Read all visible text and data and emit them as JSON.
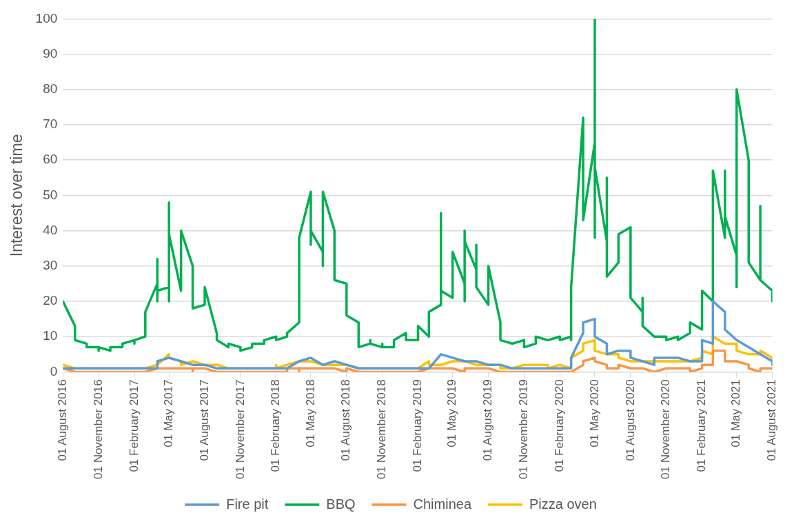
{
  "chart_data": {
    "type": "line",
    "ylabel": "Interest over time",
    "xlim": [
      "2016-08",
      "2021-08"
    ],
    "xticks": [
      {
        "value": "2016-08",
        "label": "01 August 2016"
      },
      {
        "value": "2016-11",
        "label": "01 November 2016"
      },
      {
        "value": "2017-02",
        "label": "01 February 2017"
      },
      {
        "value": "2017-05",
        "label": "01 May 2017"
      },
      {
        "value": "2017-08",
        "label": "01 August 2017"
      },
      {
        "value": "2017-11",
        "label": "01 November 2017"
      },
      {
        "value": "2018-02",
        "label": "01 February 2018"
      },
      {
        "value": "2018-05",
        "label": "01 May 2018"
      },
      {
        "value": "2018-08",
        "label": "01 August 2018"
      },
      {
        "value": "2018-11",
        "label": "01 November 2018"
      },
      {
        "value": "2019-02",
        "label": "01 February 2019"
      },
      {
        "value": "2019-05",
        "label": "01 May 2019"
      },
      {
        "value": "2019-08",
        "label": "01 August 2019"
      },
      {
        "value": "2019-11",
        "label": "01 November 2019"
      },
      {
        "value": "2020-02",
        "label": "01 February 2020"
      },
      {
        "value": "2020-05",
        "label": "01 May 2020"
      },
      {
        "value": "2020-08",
        "label": "01 August 2020"
      },
      {
        "value": "2020-11",
        "label": "01 November 2020"
      },
      {
        "value": "2021-02",
        "label": "01 February 2021"
      },
      {
        "value": "2021-05",
        "label": "01 May 2021"
      },
      {
        "value": "2021-08",
        "label": "01 August 2021"
      }
    ],
    "ylim": [
      0,
      100
    ],
    "yticks": [
      0,
      10,
      20,
      30,
      40,
      50,
      60,
      70,
      80,
      90,
      100
    ],
    "grid": "y",
    "legend": "bottom",
    "marker": "none",
    "line_style": "solid",
    "series": [
      {
        "name": "Fire pit",
        "color": "#5b9bd5",
        "x": [
          "2016-08",
          "2016-09",
          "2017-03",
          "2017-04",
          "2017-04",
          "2017-05",
          "2017-06",
          "2017-07",
          "2017-08",
          "2017-09",
          "2018-03",
          "2018-04",
          "2018-05",
          "2018-06",
          "2018-07",
          "2018-08",
          "2018-09",
          "2019-03",
          "2019-04",
          "2019-05",
          "2019-06",
          "2019-07",
          "2019-08",
          "2019-09",
          "2019-10",
          "2020-02",
          "2020-03",
          "2020-03",
          "2020-04",
          "2020-04",
          "2020-05",
          "2020-05",
          "2020-06",
          "2020-06",
          "2020-07",
          "2020-08",
          "2020-08",
          "2020-09",
          "2020-10",
          "2020-10",
          "2020-11",
          "2020-12",
          "2021-01",
          "2021-02",
          "2021-02",
          "2021-03",
          "2021-03",
          "2021-04",
          "2021-04",
          "2021-05",
          "2021-06",
          "2021-07",
          "2021-08",
          "2021-08"
        ],
        "values": [
          1,
          1,
          1,
          1,
          3,
          4,
          3,
          2,
          2,
          1,
          1,
          3,
          4,
          2,
          3,
          2,
          1,
          1,
          5,
          4,
          3,
          3,
          2,
          2,
          1,
          1,
          1,
          4,
          11,
          14,
          15,
          10,
          8,
          5,
          6,
          6,
          4,
          3,
          2,
          4,
          4,
          4,
          3,
          3,
          9,
          8,
          20,
          17,
          12,
          9,
          7,
          5,
          3,
          2
        ]
      },
      {
        "name": "BBQ",
        "color": "#00b050",
        "x": [
          "2016-08",
          "2016-09",
          "2016-09",
          "2016-10",
          "2016-10",
          "2016-11",
          "2016-11",
          "2016-11",
          "2016-12",
          "2016-12",
          "2017-01",
          "2017-01",
          "2017-02",
          "2017-02",
          "2017-02",
          "2017-03",
          "2017-03",
          "2017-04",
          "2017-04",
          "2017-04",
          "2017-04",
          "2017-05",
          "2017-05",
          "2017-05",
          "2017-05",
          "2017-06",
          "2017-06",
          "2017-07",
          "2017-07",
          "2017-08",
          "2017-08",
          "2017-09",
          "2017-09",
          "2017-10",
          "2017-10",
          "2017-11",
          "2017-11",
          "2017-12",
          "2017-12",
          "2018-01",
          "2018-01",
          "2018-02",
          "2018-02",
          "2018-03",
          "2018-03",
          "2018-04",
          "2018-04",
          "2018-05",
          "2018-05",
          "2018-05",
          "2018-06",
          "2018-06",
          "2018-06",
          "2018-07",
          "2018-07",
          "2018-08",
          "2018-08",
          "2018-09",
          "2018-09",
          "2018-10",
          "2018-10",
          "2018-10",
          "2018-11",
          "2018-11",
          "2018-11",
          "2018-12",
          "2018-12",
          "2019-01",
          "2019-01",
          "2019-02",
          "2019-02",
          "2019-03",
          "2019-03",
          "2019-04",
          "2019-04",
          "2019-04",
          "2019-05",
          "2019-05",
          "2019-06",
          "2019-06",
          "2019-06",
          "2019-06",
          "2019-07",
          "2019-07",
          "2019-07",
          "2019-08",
          "2019-08",
          "2019-09",
          "2019-09",
          "2019-10",
          "2019-11",
          "2019-11",
          "2019-12",
          "2019-12",
          "2020-01",
          "2020-02",
          "2020-02",
          "2020-03",
          "2020-03",
          "2020-03",
          "2020-04",
          "2020-04",
          "2020-05",
          "2020-05",
          "2020-05",
          "2020-05",
          "2020-06",
          "2020-06",
          "2020-06",
          "2020-07",
          "2020-07",
          "2020-08",
          "2020-08",
          "2020-09",
          "2020-09",
          "2020-09",
          "2020-10",
          "2020-11",
          "2020-11",
          "2020-12",
          "2020-12",
          "2021-01",
          "2021-01",
          "2021-02",
          "2021-02",
          "2021-03",
          "2021-03",
          "2021-04",
          "2021-04",
          "2021-04",
          "2021-05",
          "2021-05",
          "2021-05",
          "2021-06",
          "2021-06",
          "2021-07",
          "2021-07",
          "2021-07",
          "2021-08",
          "2021-08"
        ],
        "values": [
          20,
          13,
          9,
          8,
          7,
          7,
          6,
          7,
          6,
          7,
          7,
          8,
          9,
          8,
          9,
          10,
          17,
          25,
          32,
          20,
          23,
          24,
          48,
          20,
          39,
          23,
          40,
          30,
          18,
          19,
          24,
          11,
          9,
          7,
          8,
          7,
          6,
          7,
          8,
          8,
          9,
          10,
          9,
          10,
          11,
          14,
          38,
          51,
          36,
          40,
          34,
          30,
          51,
          40,
          26,
          25,
          16,
          14,
          7,
          8,
          9,
          8,
          7,
          8,
          7,
          7,
          9,
          11,
          9,
          9,
          13,
          10,
          17,
          19,
          45,
          23,
          21,
          34,
          25,
          40,
          20,
          37,
          29,
          36,
          24,
          19,
          30,
          14,
          9,
          8,
          9,
          7,
          8,
          10,
          9,
          10,
          9,
          10,
          9,
          24,
          72,
          43,
          65,
          100,
          38,
          58,
          37,
          55,
          27,
          31,
          39,
          41,
          21,
          17,
          21,
          13,
          10,
          10,
          9,
          10,
          9,
          11,
          14,
          12,
          23,
          20,
          57,
          38,
          57,
          44,
          33,
          24,
          80,
          60,
          31,
          26,
          47,
          26,
          23,
          20
        ]
      },
      {
        "name": "Chiminea",
        "color": "#f79646",
        "x": [
          "2016-08",
          "2016-09",
          "2017-03",
          "2017-04",
          "2017-06",
          "2017-07",
          "2017-07",
          "2017-07",
          "2017-08",
          "2017-09",
          "2018-02",
          "2018-03",
          "2018-03",
          "2018-04",
          "2018-04",
          "2018-04",
          "2018-07",
          "2018-08",
          "2018-08",
          "2018-09",
          "2019-02",
          "2019-03",
          "2019-05",
          "2019-06",
          "2019-06",
          "2019-07",
          "2019-08",
          "2019-09",
          "2020-03",
          "2020-04",
          "2020-04",
          "2020-05",
          "2020-05",
          "2020-06",
          "2020-06",
          "2020-07",
          "2020-07",
          "2020-08",
          "2020-09",
          "2020-10",
          "2020-11",
          "2020-12",
          "2021-01",
          "2021-01",
          "2021-02",
          "2021-02",
          "2021-03",
          "2021-03",
          "2021-04",
          "2021-04",
          "2021-05",
          "2021-06",
          "2021-06",
          "2021-07",
          "2021-07",
          "2021-08"
        ],
        "values": [
          1,
          0,
          0,
          1,
          1,
          1,
          0,
          1,
          1,
          0,
          0,
          0,
          1,
          1,
          0,
          1,
          1,
          0,
          1,
          0,
          0,
          1,
          1,
          0,
          1,
          1,
          1,
          0,
          0,
          2,
          3,
          4,
          3,
          2,
          1,
          1,
          2,
          1,
          1,
          0,
          1,
          1,
          1,
          0,
          1,
          2,
          2,
          6,
          6,
          3,
          3,
          2,
          1,
          0,
          1,
          1
        ]
      },
      {
        "name": "Pizza oven",
        "color": "#ffc000",
        "x": [
          "2016-08",
          "2016-09",
          "2017-03",
          "2017-04",
          "2017-05",
          "2017-05",
          "2017-06",
          "2017-06",
          "2017-07",
          "2017-08",
          "2017-09",
          "2017-10",
          "2018-01",
          "2018-02",
          "2018-02",
          "2018-02",
          "2018-03",
          "2018-04",
          "2018-05",
          "2018-06",
          "2018-07",
          "2018-08",
          "2018-09",
          "2019-02",
          "2019-03",
          "2019-03",
          "2019-04",
          "2019-05",
          "2019-06",
          "2019-07",
          "2019-08",
          "2019-09",
          "2019-09",
          "2019-10",
          "2019-11",
          "2019-12",
          "2020-01",
          "2020-01",
          "2020-02",
          "2020-03",
          "2020-03",
          "2020-04",
          "2020-04",
          "2020-05",
          "2020-05",
          "2020-06",
          "2020-07",
          "2020-07",
          "2020-08",
          "2021-01",
          "2021-02",
          "2021-02",
          "2021-03",
          "2021-03",
          "2021-04",
          "2021-05",
          "2021-05",
          "2021-06",
          "2021-07",
          "2021-07",
          "2021-08",
          "2021-08"
        ],
        "values": [
          2,
          1,
          1,
          2,
          5,
          4,
          3,
          2,
          3,
          2,
          2,
          1,
          1,
          1,
          2,
          1,
          2,
          3,
          3,
          2,
          2,
          2,
          1,
          1,
          3,
          2,
          2,
          3,
          3,
          2,
          2,
          2,
          1,
          1,
          2,
          2,
          2,
          1,
          2,
          1,
          4,
          6,
          8,
          9,
          6,
          5,
          5,
          4,
          3,
          3,
          4,
          6,
          5,
          10,
          8,
          8,
          6,
          5,
          5,
          6,
          4,
          3
        ]
      }
    ]
  }
}
